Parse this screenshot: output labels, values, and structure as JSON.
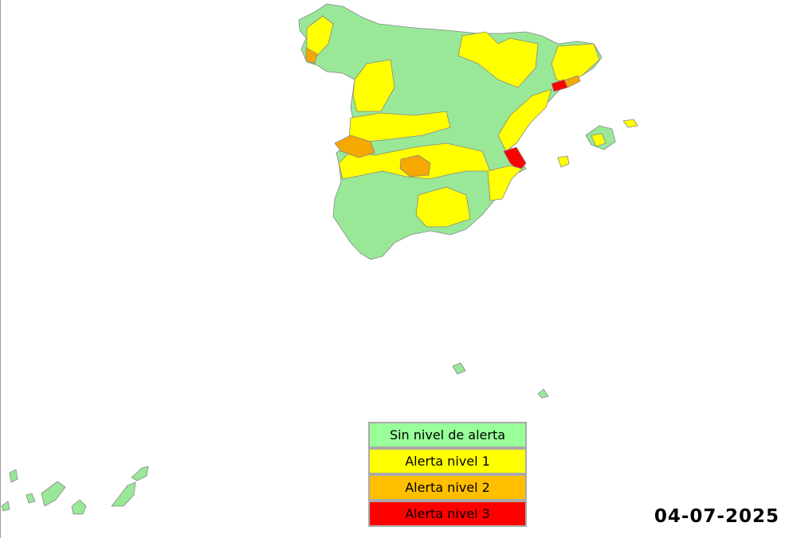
{
  "legend": {
    "items": [
      {
        "label": "Sin nivel de alerta",
        "color": "#99ff99"
      },
      {
        "label": "Alerta nivel 1",
        "color": "#ffff00"
      },
      {
        "label": "Alerta nivel 2",
        "color": "#ffbf00"
      },
      {
        "label": "Alerta nivel 3",
        "color": "#ff0000"
      }
    ]
  },
  "date": "04-07-2025"
}
